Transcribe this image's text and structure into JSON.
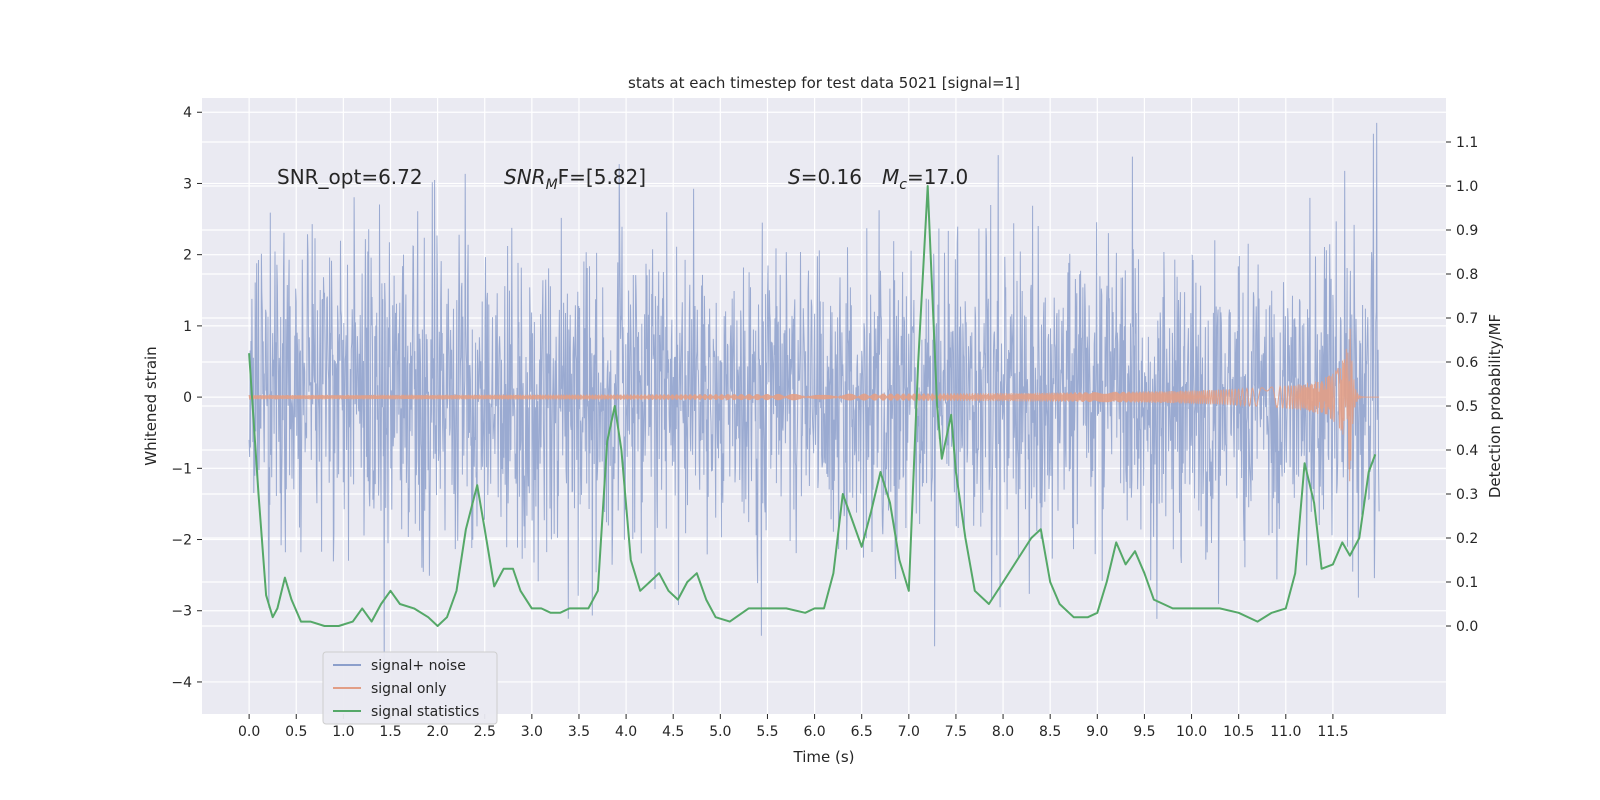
{
  "chart_data": {
    "type": "line",
    "title": "stats at each timestep for test data 5021 [signal=1]",
    "xlabel": "Time (s)",
    "ylabel": "Whitened strain",
    "y2label": "Detection probability/MF",
    "xlim": [
      -0.5,
      12.7
    ],
    "ylim": [
      -4.45,
      4.2
    ],
    "y2lim": [
      -0.2,
      1.2
    ],
    "x_ticks": [
      "0.0",
      "0.5",
      "1.0",
      "1.5",
      "2.0",
      "2.5",
      "3.0",
      "3.5",
      "4.0",
      "4.5",
      "5.0",
      "5.5",
      "6.0",
      "6.5",
      "7.0",
      "7.5",
      "8.0",
      "8.5",
      "9.0",
      "9.5",
      "10.0",
      "10.5",
      "11.0",
      "11.5"
    ],
    "y_ticks": [
      "4",
      "3",
      "2",
      "1",
      "0",
      "−1",
      "−2",
      "−3",
      "−4"
    ],
    "y2_ticks": [
      "1.1",
      "1.0",
      "0.9",
      "0.8",
      "0.7",
      "0.6",
      "0.5",
      "0.4",
      "0.3",
      "0.2",
      "0.1",
      "0.0"
    ],
    "grid": true,
    "legend_position": "lower-left",
    "annotations": {
      "snr_opt": "SNR_opt=6.72",
      "snr_mf_sym": "SNR",
      "snr_mf_sub": "M",
      "snr_mf_rest": "F=[5.82]",
      "s_sym": "S",
      "s_rest": "=0.16",
      "mc_sym": "M",
      "mc_sub": "c",
      "mc_rest": "=17.0"
    },
    "series": [
      {
        "name": "signal+ noise",
        "color": "#8c9fcb",
        "axis": "left",
        "x_range": [
          0.0,
          11.99
        ],
        "envelope_typical": [
          -1.8,
          1.8
        ],
        "y_extremes": [
          -4.05,
          3.85
        ]
      },
      {
        "name": "signal only",
        "color": "#e29e86",
        "axis": "left",
        "x_range": [
          0.0,
          11.99
        ],
        "chirp_peak_time": 11.68,
        "peak_amplitude": 1.35
      },
      {
        "name": "signal statistics",
        "color": "#55a868",
        "axis": "right",
        "x": [
          0.0,
          0.1,
          0.18,
          0.25,
          0.3,
          0.38,
          0.45,
          0.55,
          0.65,
          0.8,
          0.95,
          1.1,
          1.2,
          1.3,
          1.4,
          1.5,
          1.6,
          1.75,
          1.9,
          2.0,
          2.1,
          2.2,
          2.3,
          2.42,
          2.5,
          2.6,
          2.7,
          2.8,
          2.88,
          3.0,
          3.1,
          3.2,
          3.3,
          3.4,
          3.5,
          3.6,
          3.7,
          3.8,
          3.88,
          3.95,
          4.05,
          4.15,
          4.25,
          4.35,
          4.45,
          4.55,
          4.65,
          4.75,
          4.85,
          4.95,
          5.1,
          5.3,
          5.5,
          5.7,
          5.9,
          6.0,
          6.1,
          6.2,
          6.3,
          6.4,
          6.5,
          6.6,
          6.7,
          6.8,
          6.9,
          7.0,
          7.1,
          7.2,
          7.3,
          7.35,
          7.45,
          7.5,
          7.6,
          7.7,
          7.85,
          8.0,
          8.15,
          8.3,
          8.4,
          8.5,
          8.6,
          8.75,
          8.9,
          9.0,
          9.1,
          9.2,
          9.3,
          9.4,
          9.5,
          9.6,
          9.7,
          9.8,
          9.95,
          10.1,
          10.3,
          10.5,
          10.7,
          10.85,
          11.0,
          11.1,
          11.2,
          11.3,
          11.38,
          11.5,
          11.6,
          11.68,
          11.78,
          11.88,
          11.95
        ],
        "y": [
          0.62,
          0.3,
          0.07,
          0.02,
          0.04,
          0.11,
          0.06,
          0.01,
          0.01,
          0.0,
          0.0,
          0.01,
          0.04,
          0.01,
          0.05,
          0.08,
          0.05,
          0.04,
          0.02,
          0.0,
          0.02,
          0.08,
          0.22,
          0.32,
          0.22,
          0.09,
          0.13,
          0.13,
          0.08,
          0.04,
          0.04,
          0.03,
          0.03,
          0.04,
          0.04,
          0.04,
          0.08,
          0.42,
          0.5,
          0.4,
          0.15,
          0.08,
          0.1,
          0.12,
          0.08,
          0.06,
          0.1,
          0.12,
          0.06,
          0.02,
          0.01,
          0.04,
          0.04,
          0.04,
          0.03,
          0.04,
          0.04,
          0.12,
          0.3,
          0.24,
          0.18,
          0.26,
          0.35,
          0.28,
          0.15,
          0.08,
          0.6,
          1.0,
          0.5,
          0.38,
          0.48,
          0.35,
          0.2,
          0.08,
          0.05,
          0.1,
          0.15,
          0.2,
          0.22,
          0.1,
          0.05,
          0.02,
          0.02,
          0.03,
          0.1,
          0.19,
          0.14,
          0.17,
          0.12,
          0.06,
          0.05,
          0.04,
          0.04,
          0.04,
          0.04,
          0.03,
          0.01,
          0.03,
          0.04,
          0.12,
          0.37,
          0.28,
          0.13,
          0.14,
          0.19,
          0.16,
          0.2,
          0.35,
          0.39
        ]
      }
    ]
  }
}
